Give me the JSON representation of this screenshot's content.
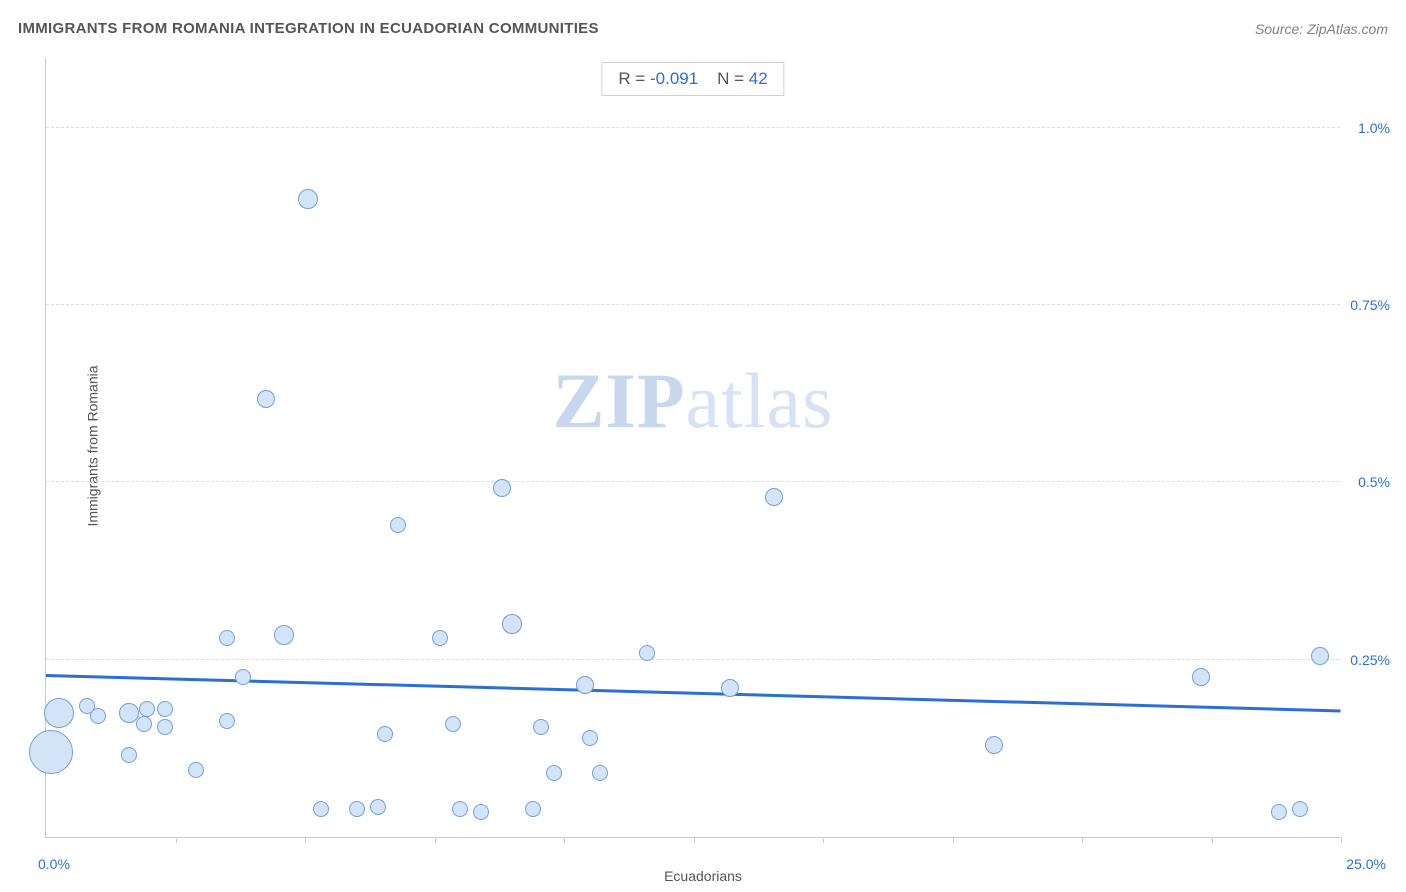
{
  "header": {
    "title": "IMMIGRANTS FROM ROMANIA INTEGRATION IN ECUADORIAN COMMUNITIES",
    "source_prefix": "Source: ",
    "source_name": "ZipAtlas.com"
  },
  "stats": {
    "r_label": "R = ",
    "r_value": "-0.091",
    "n_label": "N = ",
    "n_value": "42"
  },
  "watermark": {
    "zip": "ZIP",
    "atlas": "atlas"
  },
  "axes": {
    "xlabel": "Ecuadorians",
    "ylabel": "Immigrants from Romania",
    "xmin_label": "0.0%",
    "xmax_label": "25.0%",
    "xlim": [
      0,
      25
    ],
    "ylim": [
      0,
      1.1
    ],
    "ytick_values": [
      0.25,
      0.5,
      0.75,
      1.0
    ],
    "ytick_labels": [
      "0.25%",
      "0.5%",
      "0.75%",
      "1.0%"
    ],
    "xtick_values": [
      2.5,
      5.0,
      7.5,
      10.0,
      12.5,
      15.0,
      17.5,
      20.0,
      22.5,
      25.0
    ],
    "label_fontsize": 14,
    "tick_color": "#2a6fd6",
    "grid_color": "#dddddd"
  },
  "chart": {
    "type": "scatter",
    "background_color": "#ffffff",
    "marker_fill": "#d3e4f8",
    "marker_stroke": "#6fa0dc",
    "marker_stroke_width": 1,
    "regression_color": "#2a6fd6",
    "regression_width": 3,
    "regression": {
      "y_at_x0": 0.225,
      "y_at_xmax": 0.175
    },
    "points": [
      {
        "x": 0.1,
        "y": 0.12,
        "r": 22
      },
      {
        "x": 0.25,
        "y": 0.175,
        "r": 15
      },
      {
        "x": 0.8,
        "y": 0.185,
        "r": 8
      },
      {
        "x": 1.0,
        "y": 0.17,
        "r": 8
      },
      {
        "x": 1.6,
        "y": 0.175,
        "r": 10
      },
      {
        "x": 1.9,
        "y": 0.16,
        "r": 8
      },
      {
        "x": 1.95,
        "y": 0.18,
        "r": 8
      },
      {
        "x": 2.3,
        "y": 0.18,
        "r": 8
      },
      {
        "x": 2.3,
        "y": 0.155,
        "r": 8
      },
      {
        "x": 1.6,
        "y": 0.115,
        "r": 8
      },
      {
        "x": 2.9,
        "y": 0.095,
        "r": 8
      },
      {
        "x": 3.5,
        "y": 0.28,
        "r": 8
      },
      {
        "x": 3.5,
        "y": 0.163,
        "r": 8
      },
      {
        "x": 3.8,
        "y": 0.225,
        "r": 8
      },
      {
        "x": 4.25,
        "y": 0.618,
        "r": 9
      },
      {
        "x": 4.6,
        "y": 0.285,
        "r": 10
      },
      {
        "x": 5.05,
        "y": 0.9,
        "r": 10
      },
      {
        "x": 5.3,
        "y": 0.04,
        "r": 8
      },
      {
        "x": 6.0,
        "y": 0.04,
        "r": 8
      },
      {
        "x": 6.4,
        "y": 0.042,
        "r": 8
      },
      {
        "x": 6.55,
        "y": 0.145,
        "r": 8
      },
      {
        "x": 6.8,
        "y": 0.44,
        "r": 8
      },
      {
        "x": 7.6,
        "y": 0.28,
        "r": 8
      },
      {
        "x": 7.85,
        "y": 0.16,
        "r": 8
      },
      {
        "x": 8.0,
        "y": 0.04,
        "r": 8
      },
      {
        "x": 8.4,
        "y": 0.035,
        "r": 8
      },
      {
        "x": 8.8,
        "y": 0.492,
        "r": 9
      },
      {
        "x": 9.0,
        "y": 0.3,
        "r": 10
      },
      {
        "x": 9.4,
        "y": 0.04,
        "r": 8
      },
      {
        "x": 9.55,
        "y": 0.155,
        "r": 8
      },
      {
        "x": 9.8,
        "y": 0.09,
        "r": 8
      },
      {
        "x": 10.4,
        "y": 0.215,
        "r": 9
      },
      {
        "x": 10.5,
        "y": 0.14,
        "r": 8
      },
      {
        "x": 10.7,
        "y": 0.09,
        "r": 8
      },
      {
        "x": 11.6,
        "y": 0.26,
        "r": 8
      },
      {
        "x": 13.2,
        "y": 0.21,
        "r": 9
      },
      {
        "x": 14.05,
        "y": 0.48,
        "r": 9
      },
      {
        "x": 18.3,
        "y": 0.13,
        "r": 9
      },
      {
        "x": 22.3,
        "y": 0.225,
        "r": 9
      },
      {
        "x": 23.8,
        "y": 0.035,
        "r": 8
      },
      {
        "x": 24.2,
        "y": 0.04,
        "r": 8
      },
      {
        "x": 24.6,
        "y": 0.255,
        "r": 9
      }
    ]
  }
}
